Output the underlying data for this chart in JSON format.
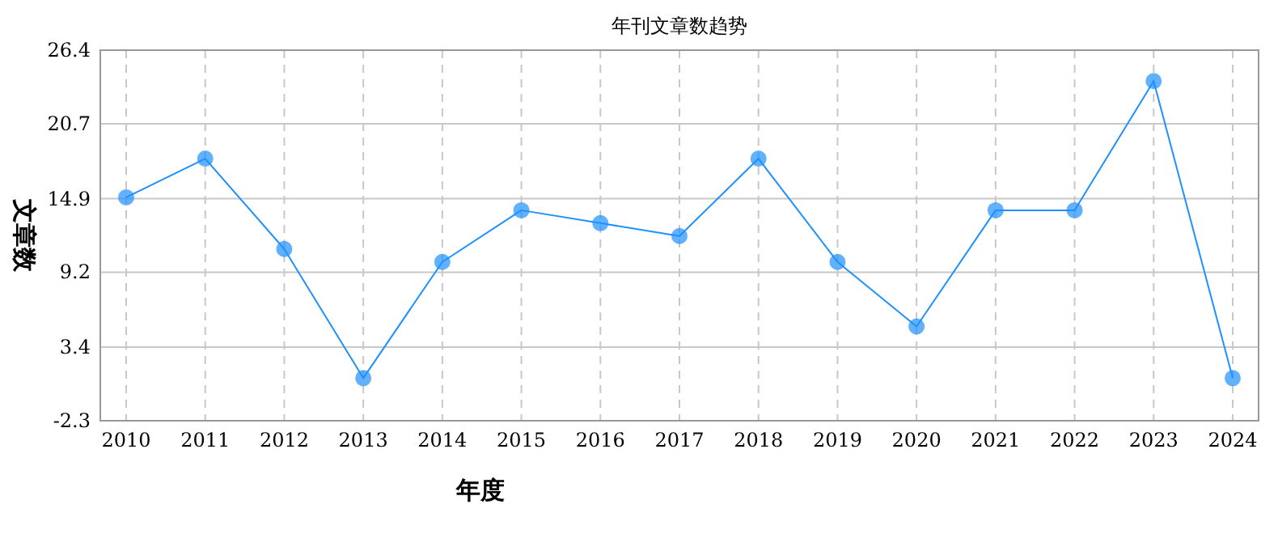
{
  "chart_data": {
    "type": "line",
    "title": "年刊文章数趋势",
    "xlabel": "年度",
    "ylabel": "文章数",
    "categories": [
      "2010",
      "2011",
      "2012",
      "2013",
      "2014",
      "2015",
      "2016",
      "2017",
      "2018",
      "2019",
      "2020",
      "2021",
      "2022",
      "2023",
      "2024"
    ],
    "series": [
      {
        "color": "#1e90ff",
        "values": [
          15,
          18,
          11,
          1,
          10,
          14,
          13,
          12,
          18,
          10,
          5,
          14,
          14,
          24,
          1
        ]
      }
    ],
    "ylim": [
      -2.3,
      26.4
    ],
    "yticks": [
      -2.3,
      3.4,
      9.2,
      14.9,
      20.7,
      26.4
    ],
    "grid": true,
    "marker": "circle",
    "line_style": "solid"
  }
}
